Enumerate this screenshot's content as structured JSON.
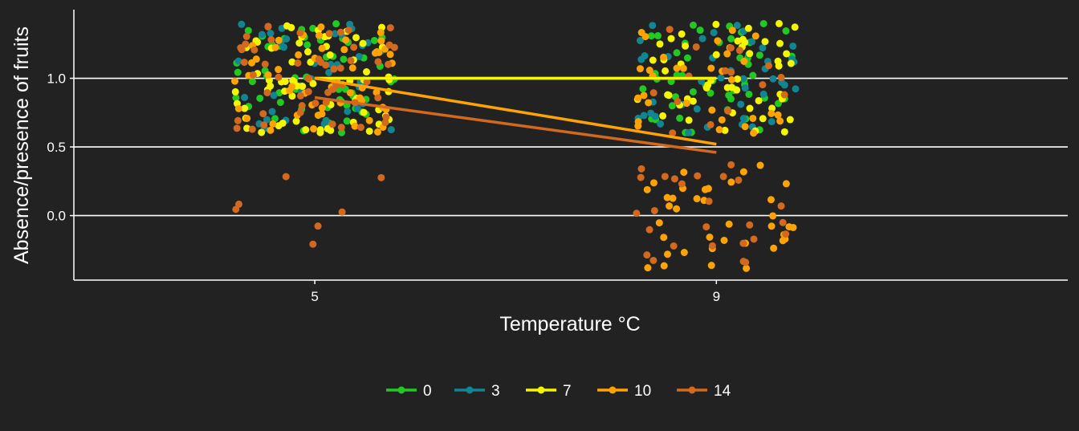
{
  "chart_data": {
    "type": "scatter",
    "xlabel": "Temperature °C",
    "ylabel": "Absence/presence of fruits",
    "x_ticks": [
      5,
      9
    ],
    "y_ticks": [
      0.0,
      0.5,
      1.0
    ],
    "y_tick_labels": [
      "0.0",
      "0.5",
      "1.0"
    ],
    "xlim": [
      2.6,
      12.5
    ],
    "ylim": [
      -0.47,
      1.5
    ],
    "jitter": {
      "x": 0.8,
      "y": 0.4
    },
    "grid": "horizontal major",
    "legend_position": "bottom",
    "background": "#222222",
    "foreground": "#ffffff",
    "series": [
      {
        "name": "0",
        "color": "#22c922",
        "points": [
          {
            "x": 5,
            "y": 1,
            "n": 58
          },
          {
            "x": 9,
            "y": 1,
            "n": 50
          }
        ],
        "fit": [
          {
            "x": 5,
            "y": 1.0
          },
          {
            "x": 9,
            "y": 1.0
          }
        ]
      },
      {
        "name": "3",
        "color": "#118591",
        "points": [
          {
            "x": 5,
            "y": 1,
            "n": 40
          },
          {
            "x": 9,
            "y": 1,
            "n": 44
          }
        ],
        "fit": [
          {
            "x": 5,
            "y": 1.0
          },
          {
            "x": 9,
            "y": 1.0
          }
        ]
      },
      {
        "name": "7",
        "color": "#f5f500",
        "points": [
          {
            "x": 5,
            "y": 1,
            "n": 65
          },
          {
            "x": 9,
            "y": 1,
            "n": 50
          }
        ],
        "fit": [
          {
            "x": 5,
            "y": 1.0
          },
          {
            "x": 9,
            "y": 1.0
          }
        ]
      },
      {
        "name": "10",
        "color": "#ffa305",
        "points": [
          {
            "x": 5,
            "y": 1,
            "n": 55
          },
          {
            "x": 5,
            "y": 0,
            "n": 0
          },
          {
            "x": 9,
            "y": 1,
            "n": 32
          },
          {
            "x": 9,
            "y": 0,
            "n": 38
          }
        ],
        "fit": [
          {
            "x": 5,
            "y": 1.0
          },
          {
            "x": 9,
            "y": 0.52
          }
        ]
      },
      {
        "name": "14",
        "color": "#d2691e",
        "points": [
          {
            "x": 5,
            "y": 1,
            "n": 55
          },
          {
            "x": 5,
            "y": 0,
            "n": 7
          },
          {
            "x": 9,
            "y": 1,
            "n": 16
          },
          {
            "x": 9,
            "y": 0,
            "n": 26
          }
        ],
        "fit": [
          {
            "x": 5,
            "y": 0.86
          },
          {
            "x": 9,
            "y": 0.46
          }
        ]
      }
    ]
  }
}
